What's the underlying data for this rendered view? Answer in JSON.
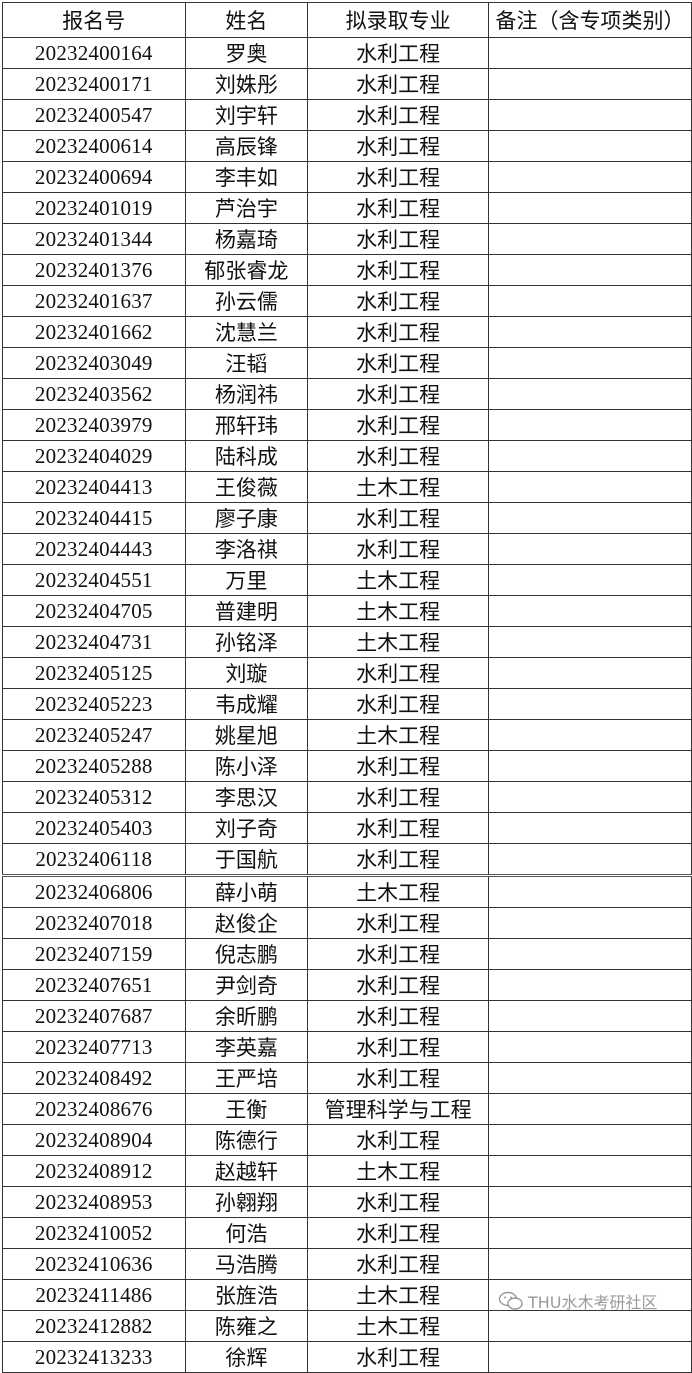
{
  "table": {
    "headers": [
      "报名号",
      "姓名",
      "拟录取专业",
      "备注（含专项类别）"
    ],
    "rows": [
      [
        "20232400164",
        "罗奥",
        "水利工程",
        ""
      ],
      [
        "20232400171",
        "刘姝彤",
        "水利工程",
        ""
      ],
      [
        "20232400547",
        "刘宇轩",
        "水利工程",
        ""
      ],
      [
        "20232400614",
        "高辰锋",
        "水利工程",
        ""
      ],
      [
        "20232400694",
        "李丰如",
        "水利工程",
        ""
      ],
      [
        "20232401019",
        "芦治宇",
        "水利工程",
        ""
      ],
      [
        "20232401344",
        "杨嘉琦",
        "水利工程",
        ""
      ],
      [
        "20232401376",
        "郁张睿龙",
        "水利工程",
        ""
      ],
      [
        "20232401637",
        "孙云儒",
        "水利工程",
        ""
      ],
      [
        "20232401662",
        "沈慧兰",
        "水利工程",
        ""
      ],
      [
        "20232403049",
        "汪韬",
        "水利工程",
        ""
      ],
      [
        "20232403562",
        "杨润祎",
        "水利工程",
        ""
      ],
      [
        "20232403979",
        "邢轩玮",
        "水利工程",
        ""
      ],
      [
        "20232404029",
        "陆科成",
        "水利工程",
        ""
      ],
      [
        "20232404413",
        "王俊薇",
        "土木工程",
        ""
      ],
      [
        "20232404415",
        "廖子康",
        "水利工程",
        ""
      ],
      [
        "20232404443",
        "李洛祺",
        "水利工程",
        ""
      ],
      [
        "20232404551",
        "万里",
        "土木工程",
        ""
      ],
      [
        "20232404705",
        "普建明",
        "土木工程",
        ""
      ],
      [
        "20232404731",
        "孙铭泽",
        "土木工程",
        ""
      ],
      [
        "20232405125",
        "刘璇",
        "水利工程",
        ""
      ],
      [
        "20232405223",
        "韦成耀",
        "水利工程",
        ""
      ],
      [
        "20232405247",
        "姚星旭",
        "土木工程",
        ""
      ],
      [
        "20232405288",
        "陈小泽",
        "水利工程",
        ""
      ],
      [
        "20232405312",
        "李思汉",
        "水利工程",
        ""
      ],
      [
        "20232405403",
        "刘子奇",
        "水利工程",
        ""
      ],
      [
        "20232406118",
        "于国航",
        "水利工程",
        ""
      ],
      [
        "20232406806",
        "薛小萌",
        "土木工程",
        ""
      ],
      [
        "20232407018",
        "赵俊企",
        "水利工程",
        ""
      ],
      [
        "20232407159",
        "倪志鹏",
        "水利工程",
        ""
      ],
      [
        "20232407651",
        "尹剑奇",
        "水利工程",
        ""
      ],
      [
        "20232407687",
        "余昕鹏",
        "水利工程",
        ""
      ],
      [
        "20232407713",
        "李英嘉",
        "水利工程",
        ""
      ],
      [
        "20232408492",
        "王严培",
        "水利工程",
        ""
      ],
      [
        "20232408676",
        "王衡",
        "管理科学与工程",
        ""
      ],
      [
        "20232408904",
        "陈德行",
        "水利工程",
        ""
      ],
      [
        "20232408912",
        "赵越轩",
        "土木工程",
        ""
      ],
      [
        "20232408953",
        "孙翱翔",
        "水利工程",
        ""
      ],
      [
        "20232410052",
        "何浩",
        "水利工程",
        ""
      ],
      [
        "20232410636",
        "马浩腾",
        "水利工程",
        ""
      ],
      [
        "20232411486",
        "张旌浩",
        "土木工程",
        ""
      ],
      [
        "20232412882",
        "陈雍之",
        "土木工程",
        ""
      ],
      [
        "20232413233",
        "徐辉",
        "水利工程",
        ""
      ]
    ]
  },
  "watermark": {
    "text": "THU水木考研社区",
    "icon": "wechat-icon"
  }
}
